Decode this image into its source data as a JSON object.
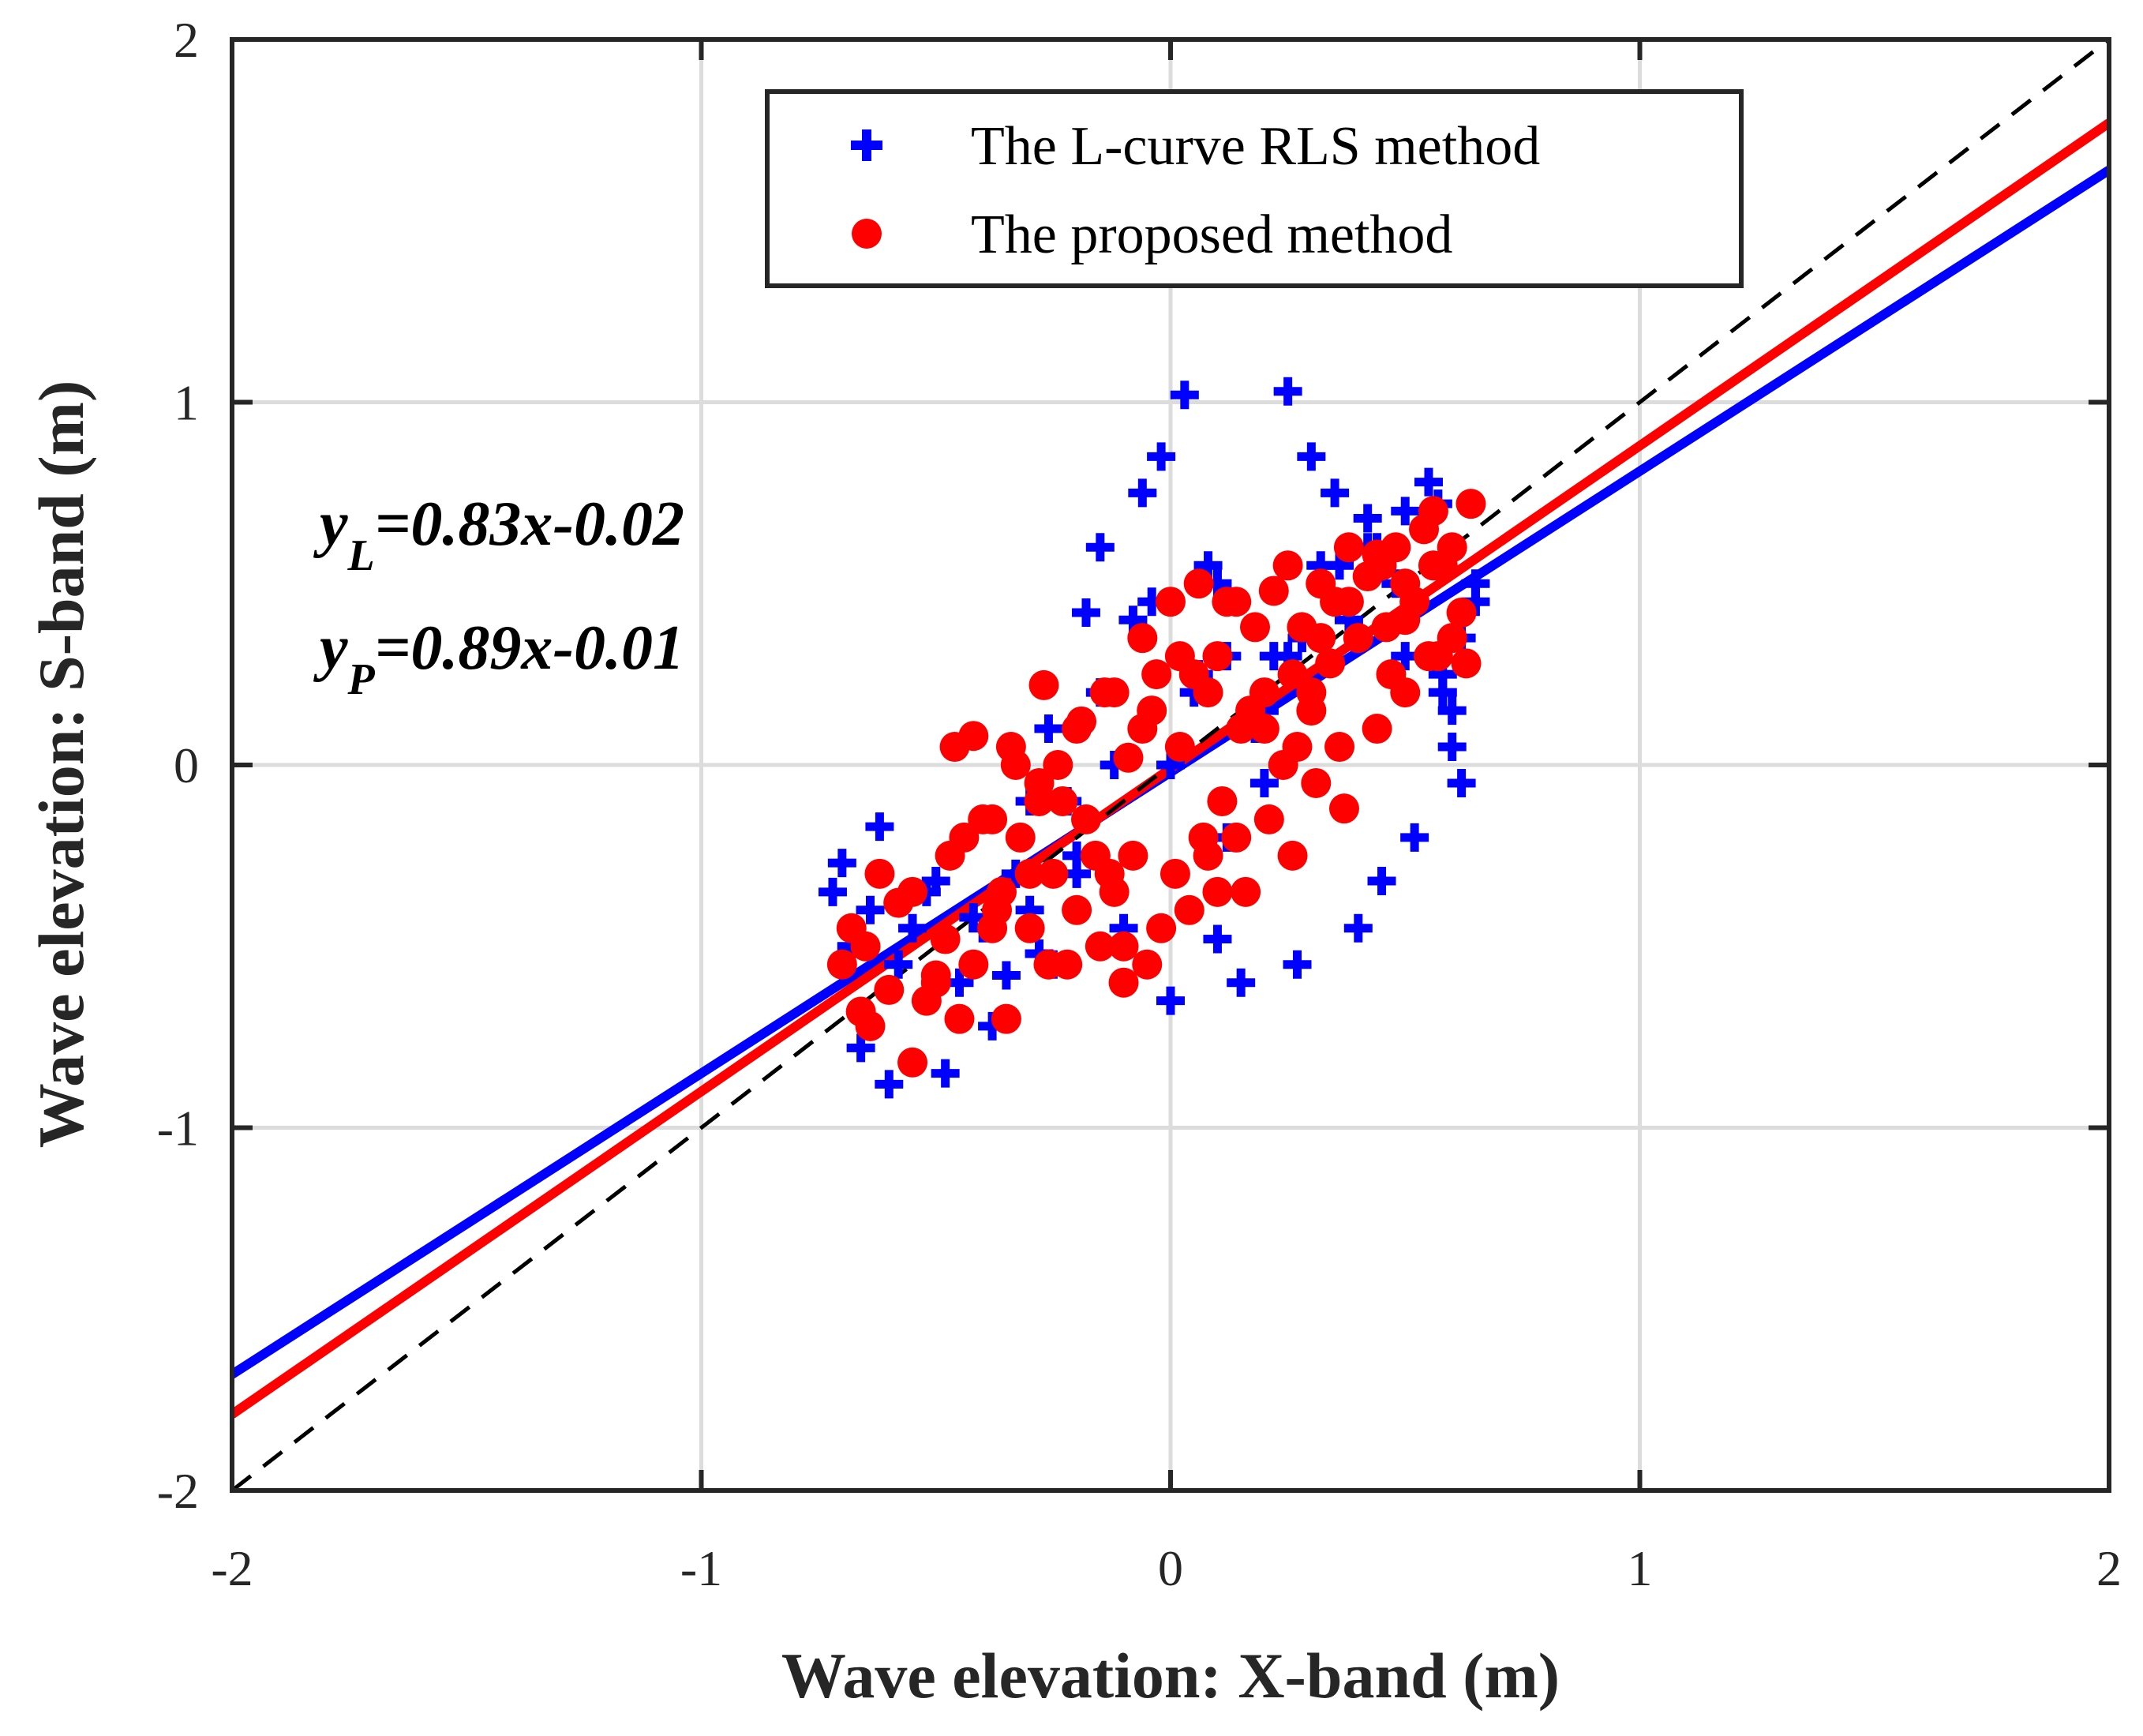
{
  "chart_data": {
    "type": "scatter",
    "xlabel": "Wave elevation: X-band (m)",
    "ylabel": "Wave elevation: S-band (m)",
    "xlim": [
      -2,
      2
    ],
    "ylim": [
      -2,
      2
    ],
    "xticks": [
      "-2",
      "-1",
      "0",
      "1",
      "2"
    ],
    "yticks": [
      "-2",
      "-1",
      "0",
      "1",
      "2"
    ],
    "grid": true,
    "legend_position": "top-right",
    "colors": {
      "lcurve": "#0000ff",
      "proposed": "#ff0000",
      "reference": "#000000"
    },
    "series": [
      {
        "name": "The L-curve RLS method",
        "marker": "plus",
        "color": "#0000ff",
        "x": [
          -0.7,
          -0.72,
          -0.68,
          -0.66,
          -0.62,
          -0.6,
          -0.55,
          -0.48,
          -0.5,
          -0.45,
          -0.42,
          -0.38,
          -0.35,
          -0.3,
          -0.28,
          -0.25,
          -0.22,
          -0.2,
          -0.18,
          -0.15,
          -0.12,
          -0.1,
          -0.06,
          -0.04,
          -0.02,
          0.0,
          0.03,
          0.05,
          0.08,
          0.1,
          0.12,
          0.15,
          0.18,
          0.2,
          0.22,
          0.25,
          0.27,
          0.3,
          0.32,
          0.35,
          0.38,
          0.4,
          0.42,
          0.45,
          0.48,
          0.5,
          0.52,
          0.55,
          0.57,
          0.6,
          0.62,
          0.65,
          -0.4,
          -0.33,
          -0.26,
          -0.15,
          -0.08,
          0.0,
          0.06,
          0.12,
          0.2,
          0.28,
          0.36,
          0.44,
          0.52,
          0.58,
          0.55,
          0.6,
          -0.64,
          -0.58,
          -0.52,
          -0.3,
          -0.2,
          0.1,
          0.25,
          0.42,
          0.5,
          0.58,
          0.62,
          0.65
        ],
        "y": [
          -0.27,
          -0.35,
          -0.5,
          -0.78,
          -0.17,
          -0.88,
          -0.45,
          -0.85,
          -0.32,
          -0.6,
          -0.42,
          -0.72,
          -0.58,
          -0.1,
          -0.52,
          -0.55,
          -0.1,
          -0.3,
          0.42,
          0.6,
          0.0,
          -0.45,
          0.75,
          0.45,
          0.85,
          -0.65,
          1.02,
          0.2,
          0.55,
          -0.48,
          0.3,
          -0.6,
          0.1,
          -0.05,
          0.3,
          1.03,
          -0.55,
          0.85,
          0.55,
          0.75,
          0.4,
          -0.45,
          0.68,
          -0.32,
          0.5,
          0.3,
          -0.2,
          0.78,
          0.72,
          0.05,
          -0.05,
          0.5,
          -0.45,
          -0.3,
          0.1,
          0.2,
          0.4,
          0.0,
          0.25,
          -0.2,
          0.15,
          0.35,
          0.55,
          0.6,
          0.45,
          0.2,
          0.3,
          0.15,
          -0.4,
          -0.55,
          -0.35,
          -0.4,
          -0.25,
          0.5,
          0.3,
          0.6,
          0.7,
          0.25,
          0.35,
          0.45
        ]
      },
      {
        "name": "The proposed method",
        "marker": "circle",
        "color": "#ff0000",
        "x": [
          -0.7,
          -0.68,
          -0.66,
          -0.64,
          -0.62,
          -0.6,
          -0.58,
          -0.55,
          -0.52,
          -0.5,
          -0.48,
          -0.46,
          -0.45,
          -0.44,
          -0.42,
          -0.4,
          -0.38,
          -0.36,
          -0.35,
          -0.34,
          -0.32,
          -0.3,
          -0.28,
          -0.27,
          -0.26,
          -0.25,
          -0.24,
          -0.22,
          -0.2,
          -0.19,
          -0.18,
          -0.16,
          -0.15,
          -0.14,
          -0.12,
          -0.1,
          -0.09,
          -0.08,
          -0.06,
          -0.05,
          -0.04,
          -0.02,
          0.0,
          0.01,
          0.02,
          0.04,
          0.05,
          0.06,
          0.08,
          0.1,
          0.11,
          0.12,
          0.14,
          0.15,
          0.16,
          0.18,
          0.2,
          0.21,
          0.22,
          0.24,
          0.25,
          0.26,
          0.28,
          0.3,
          0.31,
          0.32,
          0.34,
          0.35,
          0.36,
          0.38,
          0.4,
          0.42,
          0.44,
          0.45,
          0.46,
          0.48,
          0.5,
          0.52,
          0.54,
          0.55,
          0.56,
          0.58,
          0.6,
          0.62,
          0.63,
          0.64,
          -0.42,
          -0.38,
          -0.33,
          -0.28,
          -0.2,
          -0.12,
          -0.06,
          0.02,
          0.08,
          0.14,
          0.2,
          0.26,
          0.32,
          0.38,
          0.44,
          0.5,
          0.56,
          0.6,
          -0.55,
          -0.47,
          -0.37,
          -0.23,
          -0.13,
          -0.03,
          0.07,
          0.17,
          0.27,
          0.37,
          0.47,
          0.57,
          -0.65,
          -0.5,
          -0.3,
          -0.1,
          0.1,
          0.3,
          0.5
        ],
        "y": [
          -0.55,
          -0.45,
          -0.68,
          -0.72,
          -0.3,
          -0.62,
          -0.38,
          -0.82,
          -0.65,
          -0.58,
          -0.48,
          0.05,
          -0.7,
          -0.2,
          -0.55,
          -0.15,
          -0.45,
          -0.35,
          -0.7,
          0.05,
          -0.2,
          -0.45,
          -0.1,
          0.22,
          -0.55,
          -0.3,
          0.0,
          -0.55,
          -0.4,
          0.12,
          -0.15,
          -0.25,
          -0.5,
          0.2,
          -0.35,
          -0.6,
          0.02,
          -0.25,
          0.35,
          -0.55,
          0.15,
          -0.45,
          0.45,
          -0.3,
          0.05,
          -0.4,
          0.25,
          0.5,
          -0.25,
          0.3,
          -0.1,
          0.45,
          -0.2,
          0.1,
          -0.35,
          0.38,
          0.2,
          -0.15,
          0.48,
          0.0,
          0.55,
          -0.25,
          0.38,
          0.15,
          -0.05,
          0.5,
          0.28,
          0.45,
          0.05,
          0.6,
          0.35,
          0.52,
          0.1,
          0.55,
          0.38,
          0.6,
          0.2,
          0.45,
          0.65,
          0.3,
          0.7,
          0.55,
          0.35,
          0.42,
          0.28,
          0.72,
          0.08,
          -0.15,
          0.0,
          -0.05,
          0.1,
          0.2,
          0.1,
          0.3,
          0.2,
          0.45,
          0.1,
          0.25,
          0.35,
          0.45,
          0.58,
          0.4,
          0.55,
          0.6,
          -0.35,
          -0.25,
          -0.4,
          -0.1,
          -0.3,
          0.25,
          -0.2,
          0.15,
          0.05,
          -0.12,
          0.25,
          0.3,
          -0.5,
          -0.6,
          -0.3,
          -0.5,
          -0.35,
          0.2,
          0.5
        ]
      }
    ],
    "fit_lines": [
      {
        "name": "y_L",
        "slope": 0.83,
        "intercept": -0.02,
        "color": "#0000ff"
      },
      {
        "name": "y_P",
        "slope": 0.89,
        "intercept": -0.01,
        "color": "#ff0000"
      },
      {
        "name": "y = x",
        "slope": 1.0,
        "intercept": 0.0,
        "color": "#000000",
        "style": "dashed"
      }
    ],
    "annotations": [
      {
        "var": "y",
        "sub": "L",
        "rest": "=0.83x-0.02"
      },
      {
        "var": "y",
        "sub": "P",
        "rest": "=0.89x-0.01"
      }
    ],
    "legend": [
      {
        "label": "The L-curve RLS method",
        "marker": "plus",
        "color": "#0000ff"
      },
      {
        "label": "The proposed method",
        "marker": "circle",
        "color": "#ff0000"
      }
    ]
  }
}
